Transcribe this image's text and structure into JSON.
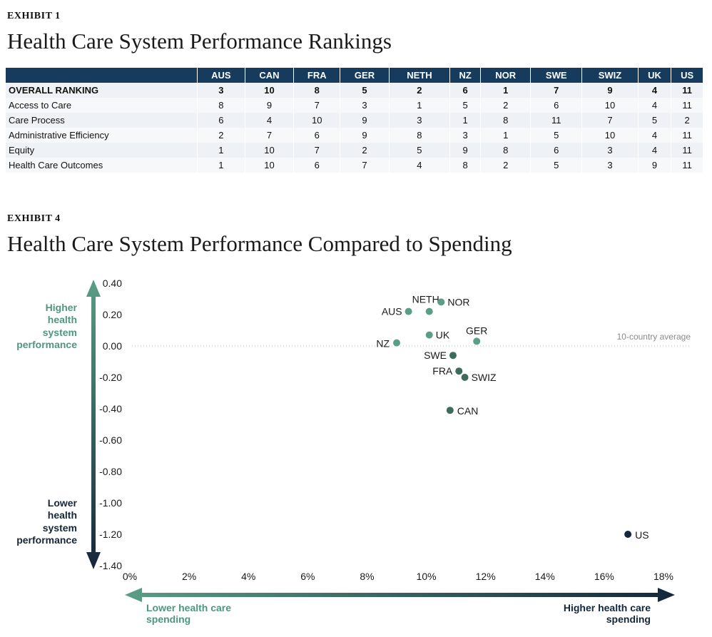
{
  "exhibit1": {
    "label": "EXHIBIT 1",
    "title": "Health Care System Performance Rankings",
    "columns": [
      "AUS",
      "CAN",
      "FRA",
      "GER",
      "NETH",
      "NZ",
      "NOR",
      "SWE",
      "SWIZ",
      "UK",
      "US"
    ],
    "rows": [
      {
        "label": "OVERALL RANKING",
        "values": [
          "3",
          "10",
          "8",
          "5",
          "2",
          "6",
          "1",
          "7",
          "9",
          "4",
          "11"
        ]
      },
      {
        "label": "Access to Care",
        "values": [
          "8",
          "9",
          "7",
          "3",
          "1",
          "5",
          "2",
          "6",
          "10",
          "4",
          "11"
        ]
      },
      {
        "label": "Care Process",
        "values": [
          "6",
          "4",
          "10",
          "9",
          "3",
          "1",
          "8",
          "11",
          "7",
          "5",
          "2"
        ]
      },
      {
        "label": "Administrative Efficiency",
        "values": [
          "2",
          "7",
          "6",
          "9",
          "8",
          "3",
          "1",
          "5",
          "10",
          "4",
          "11"
        ]
      },
      {
        "label": "Equity",
        "values": [
          "1",
          "10",
          "7",
          "2",
          "5",
          "9",
          "8",
          "6",
          "3",
          "4",
          "11"
        ]
      },
      {
        "label": "Health Care Outcomes",
        "values": [
          "1",
          "10",
          "6",
          "7",
          "4",
          "8",
          "2",
          "5",
          "3",
          "9",
          "11"
        ]
      }
    ]
  },
  "exhibit4": {
    "label": "EXHIBIT 4",
    "title": "Health Care System Performance Compared to Spending",
    "y_high_label": [
      "Higher",
      "health",
      "system",
      "performance"
    ],
    "y_low_label": [
      "Lower",
      "health",
      "system",
      "performance"
    ],
    "x_low_label": [
      "Lower health care",
      "spending"
    ],
    "x_high_label": [
      "Higher health care",
      "spending"
    ],
    "average_label": "10-country average",
    "colors": {
      "high": "#5a9e85",
      "low": "#14263a",
      "dot_light": "#5a9e85",
      "dot_mid": "#3d6b5c",
      "dot_dark": "#14263a"
    }
  },
  "chart_data": {
    "type": "scatter",
    "title": "Health Care System Performance Compared to Spending",
    "xlim": [
      0,
      18
    ],
    "ylim": [
      -1.4,
      0.4
    ],
    "x_ticks": [
      "0%",
      "2%",
      "4%",
      "6%",
      "8%",
      "10%",
      "12%",
      "14%",
      "16%",
      "18%"
    ],
    "y_ticks": [
      "0.40",
      "0.20",
      "0.00",
      "-0.20",
      "-0.40",
      "-0.60",
      "-0.80",
      "-1.00",
      "-1.20",
      "-1.40"
    ],
    "reference_line": {
      "y": 0.0,
      "label": "10-country average"
    },
    "points": [
      {
        "label": "NETH",
        "x": 10.1,
        "y": 0.22
      },
      {
        "label": "NOR",
        "x": 10.5,
        "y": 0.28
      },
      {
        "label": "AUS",
        "x": 9.4,
        "y": 0.22
      },
      {
        "label": "UK",
        "x": 10.1,
        "y": 0.07
      },
      {
        "label": "GER",
        "x": 11.7,
        "y": 0.03
      },
      {
        "label": "NZ",
        "x": 9.0,
        "y": 0.02
      },
      {
        "label": "SWE",
        "x": 10.9,
        "y": -0.06
      },
      {
        "label": "FRA",
        "x": 11.1,
        "y": -0.16
      },
      {
        "label": "SWIZ",
        "x": 11.3,
        "y": -0.2
      },
      {
        "label": "CAN",
        "x": 10.8,
        "y": -0.41
      },
      {
        "label": "US",
        "x": 16.8,
        "y": -1.2
      }
    ]
  }
}
